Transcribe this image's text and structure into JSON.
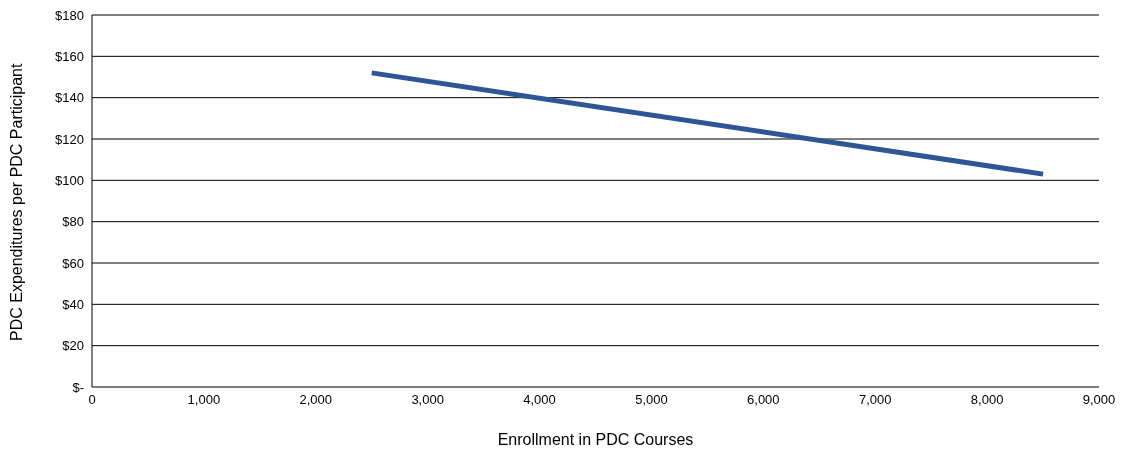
{
  "chart_data": {
    "type": "line",
    "xlabel": "Enrollment in PDC Courses",
    "ylabel": "PDC Expenditures per PDC Participant",
    "x": [
      2500,
      8500
    ],
    "series": [
      {
        "color": "#2f5597",
        "values": [
          152,
          103
        ]
      }
    ],
    "xlim": [
      0,
      9000
    ],
    "xticks": [
      0,
      {
        "value": 1000,
        "label": "1,000"
      },
      {
        "value": 2000,
        "label": "2,000"
      },
      {
        "value": 3000,
        "label": "3,000"
      },
      {
        "value": 4000,
        "label": "4,000"
      },
      {
        "value": 5000,
        "label": "5,000"
      },
      {
        "value": 6000,
        "label": "6,000"
      },
      {
        "value": 7000,
        "label": "7,000"
      },
      {
        "value": 8000,
        "label": "8,000"
      },
      {
        "value": 9000,
        "label": "9,000"
      }
    ],
    "ylim": [
      0,
      180
    ],
    "yticks": [
      {
        "value": 0,
        "label": "$-"
      },
      {
        "value": 20,
        "label": "$20"
      },
      {
        "value": 40,
        "label": "$40"
      },
      {
        "value": 60,
        "label": "$60"
      },
      {
        "value": 80,
        "label": "$80"
      },
      {
        "value": 100,
        "label": "$100"
      },
      {
        "value": 120,
        "label": "$120"
      },
      {
        "value": 140,
        "label": "$140"
      },
      {
        "value": 160,
        "label": "$160"
      },
      {
        "value": 180,
        "label": "$180"
      }
    ],
    "grid": "y",
    "marker": "none",
    "line_style": "solid"
  }
}
